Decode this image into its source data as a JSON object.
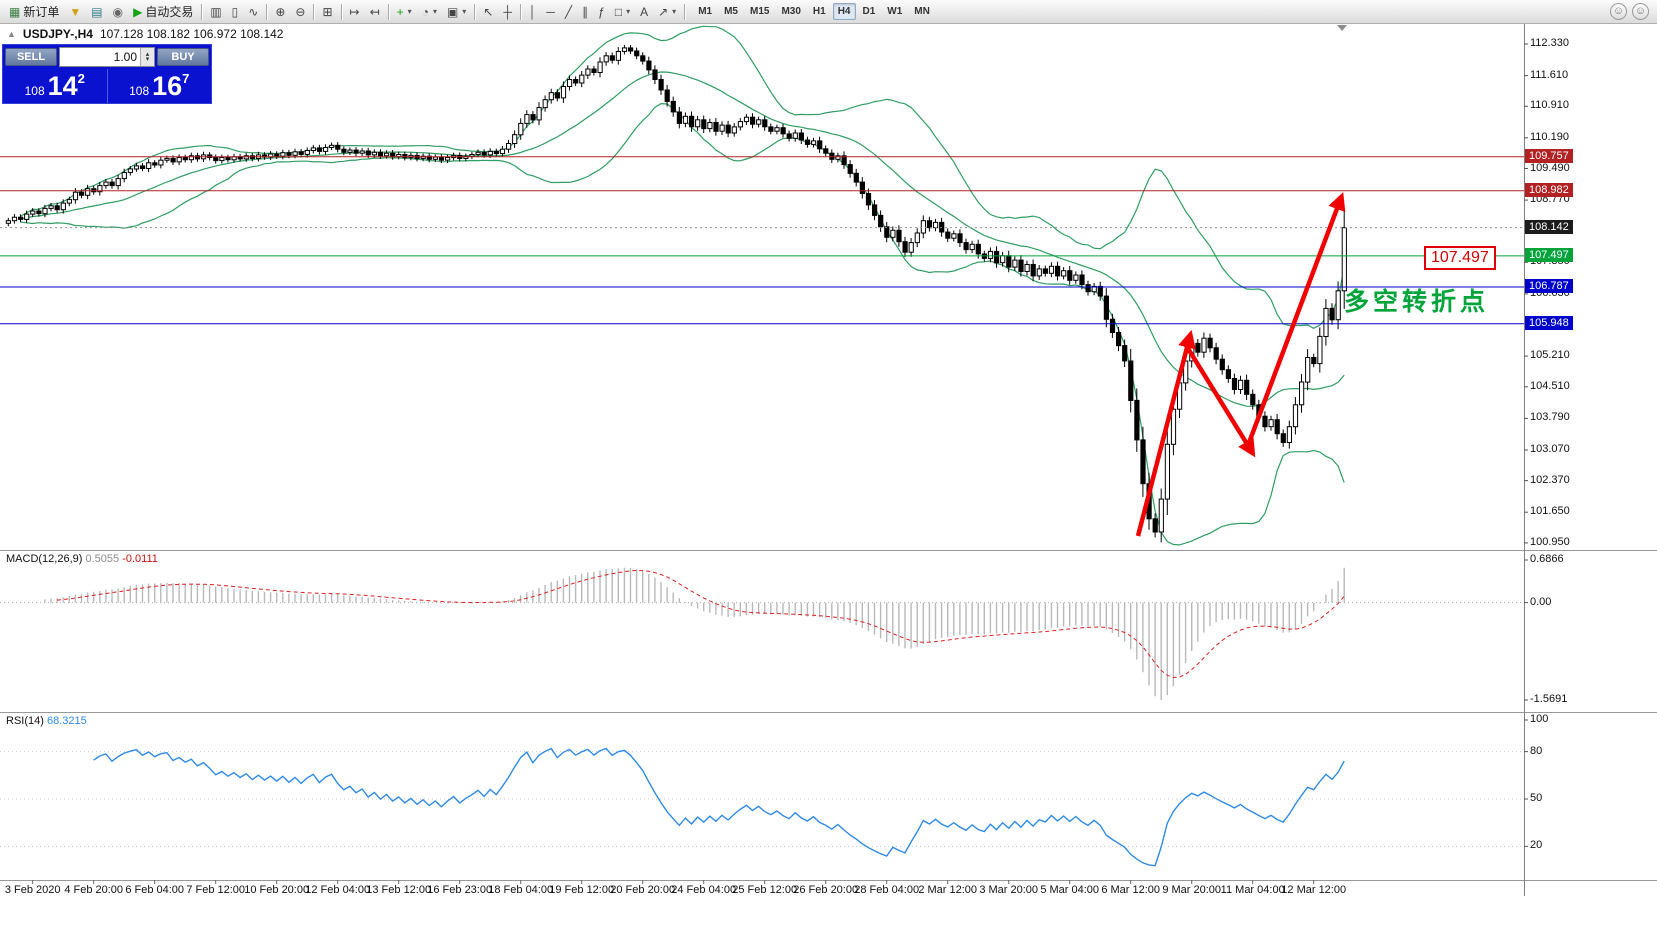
{
  "toolbar": {
    "items": [
      {
        "name": "new-order-button",
        "label": "新订单",
        "icon": "new-order-icon",
        "glyph": "▦",
        "color": "#3a7d44"
      },
      {
        "name": "scripts-button",
        "icon": "scripts-icon",
        "glyph": "▼",
        "color": "#d4a017"
      },
      {
        "name": "history-center-button",
        "icon": "history-icon",
        "glyph": "▤",
        "color": "#2e7d8b"
      },
      {
        "name": "market-watch-button",
        "icon": "globe-icon",
        "glyph": "◉",
        "color": "#666666"
      },
      {
        "name": "autotrade-button",
        "label": "自动交易",
        "icon": "play-icon",
        "glyph": "▶",
        "color": "#17a317"
      },
      {
        "sep": true
      },
      {
        "name": "bar-chart-button",
        "icon": "bar-chart-icon",
        "glyph": "▥",
        "color": "#444444"
      },
      {
        "name": "candle-chart-button",
        "icon": "candle-chart-icon",
        "glyph": "▯",
        "color": "#444444"
      },
      {
        "name": "line-chart-button",
        "icon": "line-chart-icon",
        "glyph": "∿",
        "color": "#444444"
      },
      {
        "sep": true
      },
      {
        "name": "zoom-in-button",
        "icon": "zoom-in-icon",
        "glyph": "⊕",
        "color": "#444444"
      },
      {
        "name": "zoom-out-button",
        "icon": "zoom-out-icon",
        "glyph": "⊖",
        "color": "#444444"
      },
      {
        "sep": true
      },
      {
        "name": "tile-windows-button",
        "icon": "tile-windows-icon",
        "glyph": "⊞",
        "color": "#444444"
      },
      {
        "sep": true
      },
      {
        "name": "auto-scroll-button",
        "icon": "auto-scroll-icon",
        "glyph": "↦",
        "color": "#444444"
      },
      {
        "name": "chart-shift-button",
        "icon": "chart-shift-icon",
        "glyph": "↤",
        "color": "#444444"
      },
      {
        "sep": true
      },
      {
        "name": "indicators-button",
        "icon": "indicators-plus-icon",
        "glyph": "+",
        "color": "#17a317",
        "dd": true
      },
      {
        "name": "periods-button",
        "icon": "clock-icon",
        "glyph": "◔",
        "color": "#444444",
        "dd": true
      },
      {
        "name": "templates-button",
        "icon": "template-icon",
        "glyph": "▣",
        "color": "#444444",
        "dd": true
      },
      {
        "sep": true
      },
      {
        "name": "cursor-button",
        "icon": "cursor-icon",
        "glyph": "↖",
        "color": "#444444"
      },
      {
        "name": "crosshair-button",
        "icon": "crosshair-icon",
        "glyph": "┼",
        "color": "#444444"
      },
      {
        "sep": true
      },
      {
        "name": "vertical-line-button",
        "icon": "vertical-line-icon",
        "glyph": "│",
        "color": "#444444"
      },
      {
        "name": "horizontal-line-button",
        "icon": "horizontal-line-icon",
        "glyph": "─",
        "color": "#444444"
      },
      {
        "name": "trendline-button",
        "icon": "trendline-icon",
        "glyph": "╱",
        "color": "#444444"
      },
      {
        "name": "channel-button",
        "icon": "channel-icon",
        "glyph": "∥",
        "color": "#444444"
      },
      {
        "name": "fibonacci-button",
        "icon": "fibonacci-icon",
        "glyph": "ƒ",
        "color": "#444444"
      },
      {
        "name": "shapes-button",
        "icon": "shapes-icon",
        "glyph": "□",
        "color": "#444444",
        "dd": true
      },
      {
        "name": "text-button",
        "icon": "text-icon",
        "glyph": "A",
        "color": "#444444"
      },
      {
        "name": "arrows-button",
        "icon": "arrow-icon",
        "glyph": "↗",
        "color": "#444444",
        "dd": true
      },
      {
        "sep": true
      }
    ],
    "timeframes": [
      "M1",
      "M5",
      "M15",
      "M30",
      "H1",
      "H4",
      "D1",
      "W1",
      "MN"
    ],
    "active_timeframe": "H4",
    "right_icons": [
      {
        "name": "community-button",
        "glyph": "☺"
      },
      {
        "name": "help-button",
        "glyph": "☺"
      }
    ]
  },
  "chart": {
    "title": "USDJPY-,H4",
    "ohlc": "107.128 108.182 106.972 108.142",
    "trade_panel": {
      "sell_label": "SELL",
      "buy_label": "BUY",
      "volume": "1.00",
      "sell_price_small": "108",
      "sell_price_big": "14",
      "sell_price_sup": "2",
      "buy_price_small": "108",
      "buy_price_big": "16",
      "buy_price_sup": "7"
    }
  },
  "chart_data": {
    "type": "candlestick",
    "symbol": "USDJPY",
    "timeframe": "H4",
    "ohlc_display": {
      "open": "107.128",
      "high": "108.182",
      "low": "106.972",
      "close": "108.142"
    },
    "first_open": 108.24,
    "closes": [
      108.3,
      108.38,
      108.33,
      108.45,
      108.52,
      108.46,
      108.58,
      108.64,
      108.55,
      108.7,
      108.78,
      108.95,
      108.88,
      109.03,
      108.96,
      109.1,
      109.18,
      109.1,
      109.26,
      109.4,
      109.48,
      109.55,
      109.49,
      109.62,
      109.57,
      109.68,
      109.72,
      109.64,
      109.74,
      109.69,
      109.78,
      109.71,
      109.8,
      109.74,
      109.67,
      109.74,
      109.69,
      109.76,
      109.71,
      109.78,
      109.72,
      109.8,
      109.75,
      109.82,
      109.77,
      109.85,
      109.79,
      109.87,
      109.81,
      109.9,
      109.96,
      109.88,
      109.97,
      110.02,
      109.93,
      109.86,
      109.91,
      109.84,
      109.89,
      109.8,
      109.86,
      109.78,
      109.84,
      109.76,
      109.81,
      109.74,
      109.79,
      109.72,
      109.77,
      109.7,
      109.75,
      109.68,
      109.74,
      109.79,
      109.72,
      109.77,
      109.81,
      109.86,
      109.8,
      109.88,
      109.83,
      109.93,
      110.06,
      110.26,
      110.52,
      110.72,
      110.6,
      110.88,
      111.06,
      111.22,
      111.1,
      111.36,
      111.52,
      111.44,
      111.62,
      111.76,
      111.68,
      111.92,
      112.06,
      111.96,
      112.16,
      112.24,
      112.17,
      112.06,
      111.94,
      111.74,
      111.52,
      111.28,
      111.02,
      110.78,
      110.52,
      110.68,
      110.44,
      110.6,
      110.4,
      110.54,
      110.34,
      110.48,
      110.3,
      110.44,
      110.56,
      110.66,
      110.5,
      110.6,
      110.44,
      110.34,
      110.42,
      110.28,
      110.18,
      110.3,
      110.14,
      110.04,
      110.12,
      109.94,
      109.84,
      109.7,
      109.78,
      109.58,
      109.38,
      109.18,
      108.92,
      108.66,
      108.42,
      108.16,
      107.92,
      108.08,
      107.82,
      107.58,
      107.8,
      108.02,
      108.3,
      108.14,
      108.26,
      108.04,
      107.9,
      108.0,
      107.8,
      107.64,
      107.76,
      107.54,
      107.44,
      107.6,
      107.34,
      107.5,
      107.24,
      107.4,
      107.14,
      107.3,
      107.04,
      107.2,
      107.1,
      107.26,
      107.04,
      107.16,
      106.94,
      107.06,
      106.84,
      106.68,
      106.8,
      106.58,
      106.05,
      105.75,
      105.45,
      105.1,
      104.2,
      103.3,
      102.3,
      101.5,
      101.2,
      101.95,
      103.2,
      104.0,
      104.6,
      105.1,
      105.5,
      105.3,
      105.62,
      105.4,
      105.14,
      104.9,
      104.7,
      104.45,
      104.66,
      104.34,
      104.1,
      103.84,
      103.6,
      103.76,
      103.44,
      103.24,
      103.6,
      104.1,
      104.62,
      105.18,
      105.04,
      105.66,
      106.3,
      106.04,
      106.7,
      108.14
    ],
    "candle_style": {
      "bull_fill": "#ffffff",
      "bear_fill": "#000000",
      "outline": "#000000"
    },
    "price_axis_ticks": [
      "112.330",
      "111.610",
      "110.910",
      "110.190",
      "109.490",
      "108.770",
      "107.350",
      "106.630",
      "105.210",
      "104.510",
      "103.790",
      "103.070",
      "102.370",
      "101.650",
      "100.950"
    ],
    "price_lines": [
      {
        "price": 109.757,
        "label": "109.757",
        "line_color": "#b22222",
        "line_style": "solid",
        "badge_bg": "#b22222"
      },
      {
        "price": 108.982,
        "label": "108.982",
        "line_color": "#b22222",
        "line_style": "solid",
        "badge_bg": "#b22222"
      },
      {
        "price": 108.142,
        "label": "108.142",
        "line_color": "#909090",
        "line_style": "dashed",
        "badge_bg": "#1c1c1c"
      },
      {
        "price": 107.497,
        "label": "107.497",
        "line_color": "#00a43b",
        "line_style": "solid",
        "badge_bg": "#00a43b"
      },
      {
        "price": 106.787,
        "label": "106.787",
        "line_color": "#0000cd",
        "line_style": "solid",
        "badge_bg": "#0000cd"
      },
      {
        "price": 105.948,
        "label": "105.948",
        "line_color": "#0000cd",
        "line_style": "solid",
        "badge_bg": "#0000cd"
      }
    ],
    "x_labels": [
      "3 Feb 2020",
      "4 Feb 20:00",
      "6 Feb 04:00",
      "7 Feb 12:00",
      "10 Feb 20:00",
      "12 Feb 04:00",
      "13 Feb 12:00",
      "16 Feb 23:00",
      "18 Feb 04:00",
      "19 Feb 12:00",
      "20 Feb 20:00",
      "24 Feb 04:00",
      "25 Feb 12:00",
      "26 Feb 20:00",
      "28 Feb 04:00",
      "2 Mar 12:00",
      "3 Mar 20:00",
      "5 Mar 04:00",
      "6 Mar 12:00",
      "9 Mar 20:00",
      "11 Mar 04:00",
      "12 Mar 12:00"
    ],
    "annotations": {
      "turning_point_text": "多空转折点",
      "floating_price": "107.497",
      "arrow_color": "#f10000",
      "trend_arrows": [
        [
          1138,
          536,
          1190,
          336
        ],
        [
          1184,
          342,
          1252,
          452
        ],
        [
          1247,
          448,
          1341,
          198
        ]
      ]
    },
    "indicators": {
      "bollinger": {
        "period": 20,
        "deviation": 2,
        "color": "#2f9e64"
      },
      "macd": {
        "label": "MACD(12,26,9)",
        "main_value": "0.5055",
        "signal_value": "-0.0111",
        "axis_ticks": [
          "0.6866",
          "0.00",
          "-1.5691"
        ],
        "axis_values": [
          0.6866,
          0,
          -1.5691
        ]
      },
      "rsi": {
        "label": "RSI(14)",
        "value": "68.3215",
        "axis_ticks": [
          "100",
          "80",
          "50",
          "20"
        ],
        "levels": [
          80,
          50,
          20
        ]
      }
    }
  }
}
